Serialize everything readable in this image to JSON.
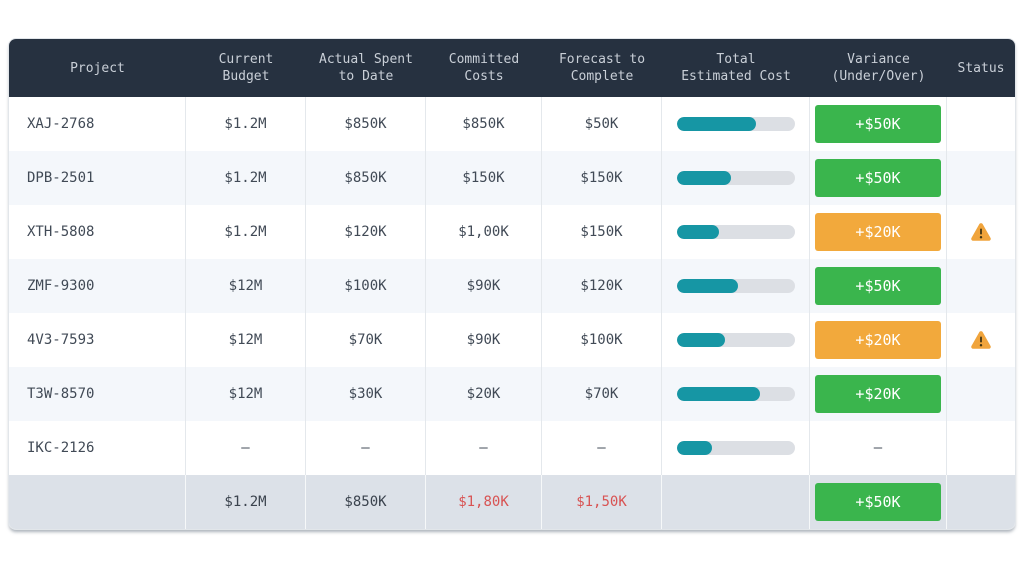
{
  "columns": [
    {
      "label": "Project"
    },
    {
      "label": "Current\nBudget"
    },
    {
      "label": "Actual Spent\nto Date"
    },
    {
      "label": "Committed\nCosts"
    },
    {
      "label": "Forecast to\nComplete"
    },
    {
      "label": "Total\nEstimated Cost"
    },
    {
      "label": "Variance\n(Under/Over)"
    },
    {
      "label": "Status"
    }
  ],
  "rows": [
    {
      "project": "XAJ-2768",
      "current_budget": "$1.2M",
      "actual_spent": "$850K",
      "committed_costs": "$850K",
      "forecast_to_complete": "$50K",
      "total_estimated_pct": 67,
      "variance": "+$50K",
      "variance_style": "green",
      "status_warning": false
    },
    {
      "project": "DPB-2501",
      "current_budget": "$1.2M",
      "actual_spent": "$850K",
      "committed_costs": "$150K",
      "forecast_to_complete": "$150K",
      "total_estimated_pct": 46,
      "variance": "+$50K",
      "variance_style": "green",
      "status_warning": false
    },
    {
      "project": "XTH-5808",
      "current_budget": "$1.2M",
      "actual_spent": "$120K",
      "committed_costs": "$1,00K",
      "forecast_to_complete": "$150K",
      "total_estimated_pct": 36,
      "variance": "+$20K",
      "variance_style": "orange",
      "status_warning": true
    },
    {
      "project": "ZMF-9300",
      "current_budget": "$12M",
      "actual_spent": "$100K",
      "committed_costs": "$90K",
      "forecast_to_complete": "$120K",
      "total_estimated_pct": 52,
      "variance": "+$50K",
      "variance_style": "green",
      "status_warning": false
    },
    {
      "project": "4V3-7593",
      "current_budget": "$12M",
      "actual_spent": "$70K",
      "committed_costs": "$90K",
      "forecast_to_complete": "$100K",
      "total_estimated_pct": 41,
      "variance": "+$20K",
      "variance_style": "orange",
      "status_warning": true
    },
    {
      "project": "T3W-8570",
      "current_budget": "$12M",
      "actual_spent": "$30K",
      "committed_costs": "$20K",
      "forecast_to_complete": "$70K",
      "total_estimated_pct": 71,
      "variance": "+$20K",
      "variance_style": "green",
      "status_warning": false
    },
    {
      "project": "IKC-2126",
      "current_budget": "–",
      "actual_spent": "–",
      "committed_costs": "–",
      "forecast_to_complete": "–",
      "total_estimated_pct": 30,
      "variance": "–",
      "variance_style": "dash",
      "status_warning": false
    }
  ],
  "footer": {
    "project": "",
    "current_budget": "$1.2M",
    "actual_spent": "$850K",
    "committed_costs": "$1,80K",
    "forecast_to_complete": "$1,50K",
    "variance": "+$50K",
    "variance_style": "green"
  },
  "colors": {
    "header_bg": "#263140",
    "teal": "#1696a4",
    "green": "#3ab54d",
    "orange": "#f2a93c",
    "red": "#d85353"
  },
  "icons": {
    "warning": "warning-triangle-icon"
  }
}
